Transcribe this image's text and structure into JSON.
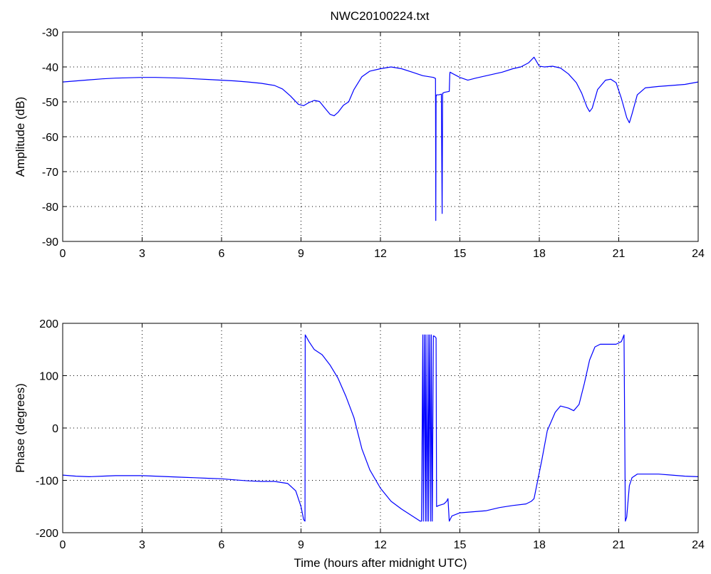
{
  "title": "NWC20100224.txt",
  "chart_data": [
    {
      "type": "line",
      "title": "NWC20100224.txt",
      "xlabel": "",
      "ylabel": "Amplitude (dB)",
      "xlim": [
        0,
        24
      ],
      "ylim": [
        -90,
        -30
      ],
      "xticks": [
        0,
        3,
        6,
        9,
        12,
        15,
        18,
        21,
        24
      ],
      "yticks": [
        -90,
        -80,
        -70,
        -60,
        -50,
        -40,
        -30
      ],
      "grid": true,
      "series": [
        {
          "color": "#0000ff",
          "x": [
            0,
            0.5,
            1,
            1.5,
            2,
            2.5,
            3,
            3.5,
            4,
            4.5,
            5,
            5.5,
            6,
            6.5,
            7,
            7.5,
            8,
            8.3,
            8.6,
            8.9,
            9.1,
            9.3,
            9.5,
            9.7,
            9.9,
            10.1,
            10.25,
            10.4,
            10.6,
            10.8,
            11,
            11.3,
            11.6,
            12,
            12.4,
            12.8,
            13.2,
            13.6,
            14.0,
            14.08,
            14.09,
            14.1,
            14.12,
            14.2,
            14.3,
            14.33,
            14.35,
            14.37,
            14.4,
            14.6,
            14.62,
            14.63,
            14.7,
            15,
            15.3,
            15.6,
            16,
            16.3,
            16.6,
            17,
            17.3,
            17.6,
            17.8,
            18,
            18.2,
            18.5,
            18.8,
            19.1,
            19.4,
            19.6,
            19.8,
            19.9,
            20.0,
            20.2,
            20.5,
            20.7,
            20.9,
            21.1,
            21.3,
            21.4,
            21.5,
            21.7,
            22,
            22.5,
            23,
            23.5,
            24
          ],
          "y": [
            -44.3,
            -44.0,
            -43.7,
            -43.4,
            -43.2,
            -43.1,
            -43.0,
            -43.0,
            -43.1,
            -43.2,
            -43.4,
            -43.6,
            -43.8,
            -44.0,
            -44.3,
            -44.7,
            -45.3,
            -46.3,
            -48.3,
            -50.7,
            -51.1,
            -50.2,
            -49.6,
            -49.9,
            -51.8,
            -53.6,
            -54.0,
            -53.0,
            -51.0,
            -50.0,
            -46.5,
            -42.8,
            -41.2,
            -40.5,
            -40.0,
            -40.5,
            -41.5,
            -42.5,
            -43.0,
            -43.3,
            -84.0,
            -48.5,
            -48.0,
            -48.0,
            -47.8,
            -82.0,
            -47.5,
            -47.5,
            -47.3,
            -47.0,
            -42.0,
            -41.5,
            -41.8,
            -43.0,
            -43.8,
            -43.2,
            -42.5,
            -42.0,
            -41.5,
            -40.5,
            -40.0,
            -38.8,
            -37.2,
            -39.8,
            -40.0,
            -39.8,
            -40.3,
            -42.0,
            -44.5,
            -47.5,
            -51.5,
            -52.8,
            -51.8,
            -46.5,
            -43.8,
            -43.5,
            -44.5,
            -49.0,
            -54.5,
            -56.0,
            -53.5,
            -48.0,
            -46.0,
            -45.6,
            -45.3,
            -45.0,
            -44.3
          ]
        }
      ]
    },
    {
      "type": "line",
      "title": "",
      "xlabel": "Time (hours after midnight UTC)",
      "ylabel": "Phase (degrees)",
      "xlim": [
        0,
        24
      ],
      "ylim": [
        -200,
        200
      ],
      "xticks": [
        0,
        3,
        6,
        9,
        12,
        15,
        18,
        21,
        24
      ],
      "yticks": [
        -200,
        -100,
        0,
        100,
        200
      ],
      "grid": true,
      "series": [
        {
          "color": "#0000ff",
          "x": [
            0,
            0.5,
            1,
            1.5,
            2,
            2.5,
            3,
            3.5,
            4,
            4.5,
            5,
            5.5,
            6,
            6.5,
            7,
            7.5,
            8,
            8.5,
            8.8,
            9.0,
            9.1,
            9.15,
            9.16,
            9.3,
            9.5,
            9.8,
            10.1,
            10.4,
            10.7,
            11.0,
            11.3,
            11.6,
            12.0,
            12.4,
            12.8,
            13.2,
            13.5,
            13.55,
            13.6,
            13.62,
            13.66,
            13.7,
            13.72,
            13.76,
            13.8,
            13.82,
            13.86,
            13.9,
            13.92,
            13.96,
            14.0,
            14.05,
            14.1,
            14.12,
            14.2,
            14.4,
            14.5,
            14.55,
            14.6,
            14.7,
            15.0,
            15.5,
            16.0,
            16.5,
            17.0,
            17.5,
            17.7,
            17.8,
            17.9,
            18.1,
            18.3,
            18.6,
            18.8,
            19.1,
            19.3,
            19.5,
            19.7,
            19.9,
            20.1,
            20.3,
            20.6,
            20.9,
            21.1,
            21.2,
            21.25,
            21.3,
            21.4,
            21.5,
            21.7,
            22.0,
            22.5,
            23.0,
            23.5,
            24.0
          ],
          "y": [
            -90,
            -92,
            -93,
            -92,
            -91,
            -91,
            -91,
            -92,
            -93,
            -94,
            -95,
            -96,
            -97,
            -99,
            -101,
            -102,
            -102,
            -106,
            -120,
            -150,
            -175,
            -178,
            178,
            165,
            150,
            140,
            120,
            95,
            60,
            20,
            -40,
            -80,
            -115,
            -140,
            -155,
            -168,
            -178,
            -178,
            178,
            -178,
            178,
            -178,
            178,
            -178,
            178,
            -178,
            178,
            -178,
            178,
            -178,
            176,
            175,
            172,
            -150,
            -148,
            -145,
            -140,
            -135,
            -178,
            -168,
            -162,
            -160,
            -158,
            -152,
            -148,
            -145,
            -140,
            -135,
            -110,
            -60,
            -5,
            30,
            42,
            38,
            33,
            45,
            85,
            130,
            155,
            160,
            160,
            160,
            165,
            178,
            -178,
            -170,
            -110,
            -95,
            -88,
            -88,
            -88,
            -90,
            -92,
            -93
          ]
        }
      ]
    }
  ]
}
